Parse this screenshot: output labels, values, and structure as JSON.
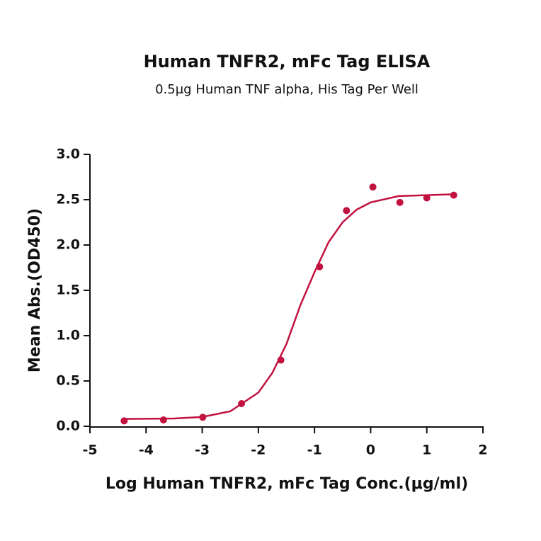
{
  "chart_data": {
    "type": "scatter",
    "title": "Human TNFR2, mFc Tag ELISA",
    "subtitle": "0.5μg Human TNF alpha, His Tag Per Well",
    "x_label": "Log Human TNFR2, mFc Tag Conc.(μg/ml)",
    "y_label": "Mean Abs.(OD450)",
    "color": "#c2123f",
    "x": [
      -4.39,
      -3.69,
      -2.99,
      -2.3,
      -1.6,
      -0.91,
      -0.43,
      0.04,
      0.52,
      1.0,
      1.48
    ],
    "values": [
      0.06,
      0.07,
      0.1,
      0.25,
      0.73,
      1.76,
      2.38,
      2.64,
      2.47,
      2.52,
      2.55
    ],
    "curve": {
      "x": [
        -4.4,
        -3.5,
        -3.0,
        -2.5,
        -2.0,
        -1.75,
        -1.5,
        -1.25,
        -1.0,
        -0.75,
        -0.5,
        -0.25,
        0,
        0.5,
        1.0,
        1.5
      ],
      "values": [
        0.081,
        0.086,
        0.103,
        0.165,
        0.372,
        0.59,
        0.907,
        1.339,
        1.7,
        2.03,
        2.25,
        2.39,
        2.47,
        2.54,
        2.55,
        2.56
      ]
    },
    "xlim": [
      -5,
      2
    ],
    "ylim": [
      0,
      3
    ],
    "xticks": [
      -5,
      -4,
      -3,
      -2,
      -1,
      0,
      1,
      2
    ],
    "yticks": [
      {
        "value": 0,
        "label": "0.0"
      },
      0.5,
      {
        "value": 1,
        "label": "1.0"
      },
      1.5,
      {
        "value": 2,
        "label": "2.0"
      },
      2.5,
      {
        "value": 3,
        "label": "3.0"
      }
    ]
  }
}
